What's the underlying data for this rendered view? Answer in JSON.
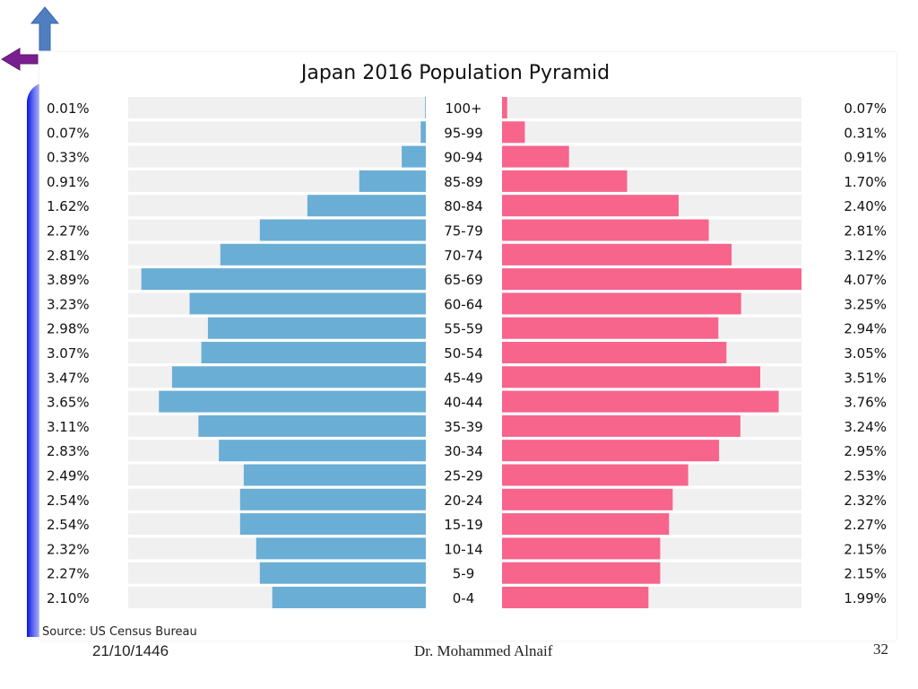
{
  "slide": {
    "date": "21/10/1446",
    "author": "Dr. Mohammed Alnaif",
    "page_number": "32"
  },
  "nav": {
    "up_icon": "up-arrow-icon",
    "back_icon": "left-arrow-icon",
    "up_color": "#4f7fc0",
    "back_color": "#7a1f8f"
  },
  "chart_data": {
    "type": "bar",
    "title": "Japan 2016 Population Pyramid",
    "source": "Source: US Census Bureau",
    "categories": [
      "100+",
      "95-99",
      "90-94",
      "85-89",
      "80-84",
      "75-79",
      "70-74",
      "65-69",
      "60-64",
      "55-59",
      "50-54",
      "45-49",
      "40-44",
      "35-39",
      "30-34",
      "25-29",
      "20-24",
      "15-19",
      "10-14",
      "5-9",
      "0-4"
    ],
    "series": [
      {
        "side": "left",
        "color": "#6aaed6",
        "values": [
          0.01,
          0.07,
          0.33,
          0.91,
          1.62,
          2.27,
          2.81,
          3.89,
          3.23,
          2.98,
          3.07,
          3.47,
          3.65,
          3.11,
          2.83,
          2.49,
          2.54,
          2.54,
          2.32,
          2.27,
          2.1
        ],
        "labels": [
          "0.01%",
          "0.07%",
          "0.33%",
          "0.91%",
          "1.62%",
          "2.27%",
          "2.81%",
          "3.89%",
          "3.23%",
          "2.98%",
          "3.07%",
          "3.47%",
          "3.65%",
          "3.11%",
          "2.83%",
          "2.49%",
          "2.54%",
          "2.54%",
          "2.32%",
          "2.27%",
          "2.10%"
        ]
      },
      {
        "side": "right",
        "color": "#f7648c",
        "values": [
          0.07,
          0.31,
          0.91,
          1.7,
          2.4,
          2.81,
          3.12,
          4.07,
          3.25,
          2.94,
          3.05,
          3.51,
          3.76,
          3.24,
          2.95,
          2.53,
          2.32,
          2.27,
          2.15,
          2.15,
          1.99
        ],
        "labels": [
          "0.07%",
          "0.31%",
          "0.91%",
          "1.70%",
          "2.40%",
          "2.81%",
          "3.12%",
          "4.07%",
          "3.25%",
          "2.94%",
          "3.05%",
          "3.51%",
          "3.76%",
          "3.24%",
          "2.95%",
          "2.53%",
          "2.32%",
          "2.27%",
          "2.15%",
          "2.15%",
          "1.99%"
        ]
      }
    ],
    "xlim": [
      0,
      4.07
    ],
    "grid": false,
    "legend": "none",
    "background_track_color": "#f0f0f0"
  }
}
